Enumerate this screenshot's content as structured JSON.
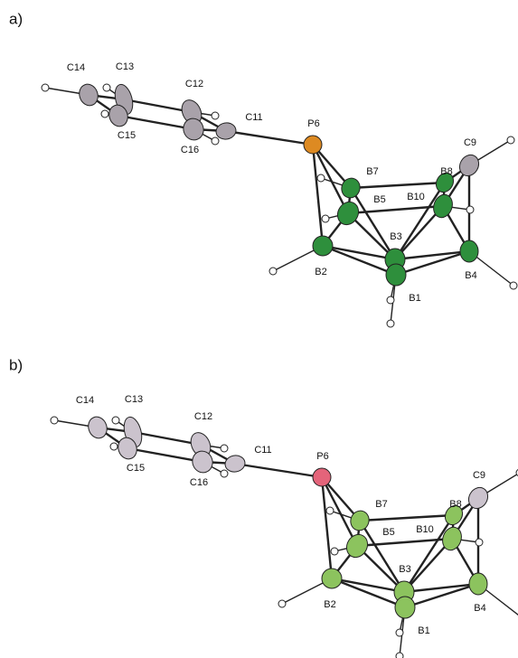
{
  "panels": [
    {
      "label": "a)",
      "atoms": [
        "C14",
        "C13",
        "C15",
        "C12",
        "C16",
        "C11",
        "P6",
        "C9",
        "B7",
        "B8",
        "B5",
        "B10",
        "B3",
        "B2",
        "B4",
        "B1"
      ]
    },
    {
      "label": "b)",
      "atoms": [
        "C14",
        "C13",
        "C15",
        "C12",
        "C16",
        "C11",
        "P6",
        "C9",
        "B7",
        "B8",
        "B5",
        "B10",
        "B3",
        "B2",
        "B4",
        "B1"
      ]
    }
  ]
}
